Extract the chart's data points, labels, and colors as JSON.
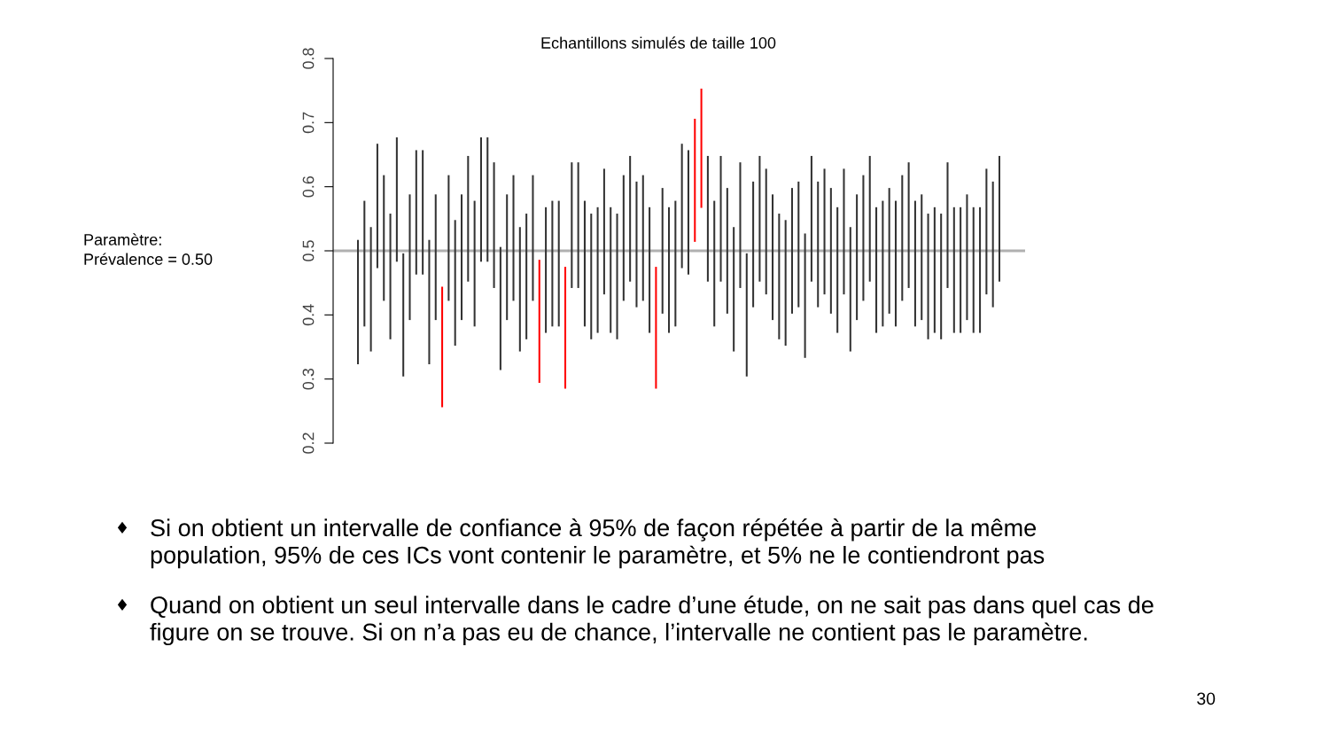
{
  "chart_data": {
    "type": "bar",
    "title": "Echantillons simulés de taille 100",
    "categories": [
      null,
      null,
      null,
      null,
      null,
      null,
      null,
      null,
      null,
      null,
      null,
      null,
      null,
      null,
      null,
      null,
      null,
      null,
      null,
      null,
      null,
      null,
      null,
      null,
      null,
      null,
      null,
      null,
      null,
      null,
      null,
      null,
      null,
      null,
      null,
      null,
      null,
      null,
      null,
      null,
      null,
      null,
      null,
      null,
      null,
      null,
      null,
      null,
      null,
      null,
      null,
      null,
      null,
      null,
      null,
      null,
      null,
      null,
      null,
      null,
      null,
      null,
      null,
      null,
      null,
      null,
      null,
      null,
      null,
      null,
      null,
      null,
      null,
      null,
      null,
      null,
      null,
      null,
      null,
      null,
      null,
      null,
      null,
      null,
      null,
      null,
      null,
      null,
      null,
      null,
      null,
      null,
      null,
      null,
      null,
      null,
      null,
      null,
      null,
      null
    ],
    "base": [
      0.323,
      0.382,
      0.343,
      0.473,
      0.422,
      0.362,
      0.483,
      0.304,
      0.392,
      0.463,
      0.463,
      0.323,
      0.392,
      0.256,
      0.422,
      0.352,
      0.392,
      0.452,
      0.382,
      0.483,
      0.483,
      0.442,
      0.314,
      0.392,
      0.422,
      0.343,
      0.362,
      0.422,
      0.294,
      0.372,
      0.382,
      0.382,
      0.285,
      0.442,
      0.442,
      0.382,
      0.362,
      0.372,
      0.432,
      0.372,
      0.362,
      0.422,
      0.452,
      0.412,
      0.422,
      0.372,
      0.285,
      0.402,
      0.372,
      0.382,
      0.473,
      0.463,
      0.514,
      0.567,
      0.452,
      0.382,
      0.452,
      0.402,
      0.343,
      0.442,
      0.304,
      0.412,
      0.452,
      0.432,
      0.392,
      0.362,
      0.352,
      0.402,
      0.412,
      0.333,
      0.452,
      0.412,
      0.432,
      0.402,
      0.372,
      0.432,
      0.343,
      0.392,
      0.422,
      0.452,
      0.372,
      0.382,
      0.402,
      0.382,
      0.422,
      0.442,
      0.382,
      0.392,
      0.362,
      0.372,
      0.362,
      0.442,
      0.372,
      0.372,
      0.392,
      0.372,
      0.372,
      0.432,
      0.412,
      0.452
    ],
    "values": [
      0.194,
      0.196,
      0.194,
      0.194,
      0.196,
      0.196,
      0.194,
      0.192,
      0.196,
      0.194,
      0.194,
      0.194,
      0.196,
      0.188,
      0.196,
      0.196,
      0.196,
      0.196,
      0.196,
      0.194,
      0.194,
      0.196,
      0.192,
      0.196,
      0.196,
      0.194,
      0.196,
      0.196,
      0.192,
      0.196,
      0.196,
      0.196,
      0.19,
      0.196,
      0.196,
      0.196,
      0.196,
      0.196,
      0.196,
      0.196,
      0.196,
      0.196,
      0.196,
      0.196,
      0.196,
      0.196,
      0.19,
      0.196,
      0.196,
      0.196,
      0.194,
      0.194,
      0.192,
      0.186,
      0.196,
      0.196,
      0.196,
      0.196,
      0.194,
      0.196,
      0.192,
      0.196,
      0.196,
      0.196,
      0.196,
      0.196,
      0.196,
      0.196,
      0.196,
      0.194,
      0.196,
      0.196,
      0.196,
      0.196,
      0.196,
      0.196,
      0.194,
      0.196,
      0.196,
      0.196,
      0.196,
      0.196,
      0.196,
      0.196,
      0.196,
      0.196,
      0.196,
      0.196,
      0.196,
      0.196,
      0.196,
      0.196,
      0.196,
      0.196,
      0.196,
      0.196,
      0.196,
      0.196,
      0.196,
      0.196
    ],
    "colors": [
      "#333333",
      "#333333",
      "#333333",
      "#333333",
      "#333333",
      "#333333",
      "#333333",
      "#333333",
      "#333333",
      "#333333",
      "#333333",
      "#333333",
      "#333333",
      "#ff0000",
      "#333333",
      "#333333",
      "#333333",
      "#333333",
      "#333333",
      "#333333",
      "#333333",
      "#333333",
      "#333333",
      "#333333",
      "#333333",
      "#333333",
      "#333333",
      "#333333",
      "#ff0000",
      "#333333",
      "#333333",
      "#333333",
      "#ff0000",
      "#333333",
      "#333333",
      "#333333",
      "#333333",
      "#333333",
      "#333333",
      "#333333",
      "#333333",
      "#333333",
      "#333333",
      "#333333",
      "#333333",
      "#333333",
      "#ff0000",
      "#333333",
      "#333333",
      "#333333",
      "#333333",
      "#333333",
      "#ff0000",
      "#ff0000",
      "#333333",
      "#333333",
      "#333333",
      "#333333",
      "#333333",
      "#333333",
      "#333333",
      "#333333",
      "#333333",
      "#333333",
      "#333333",
      "#333333",
      "#333333",
      "#333333",
      "#333333",
      "#333333",
      "#333333",
      "#333333",
      "#333333",
      "#333333",
      "#333333",
      "#333333",
      "#333333",
      "#333333",
      "#333333",
      "#333333",
      "#333333",
      "#333333",
      "#333333",
      "#333333",
      "#333333",
      "#333333",
      "#333333",
      "#333333",
      "#333333",
      "#333333",
      "#333333",
      "#333333",
      "#333333",
      "#333333",
      "#333333",
      "#333333",
      "#333333",
      "#333333",
      "#333333",
      "#333333"
    ],
    "ylim": [
      0.2,
      0.8
    ],
    "yticks": [
      0.2,
      0.3,
      0.4,
      0.5,
      0.6,
      0.7,
      0.8
    ],
    "ref_lines": [
      {
        "axis": "y",
        "value": 0.5,
        "color": "#b0b0b0"
      }
    ],
    "grid": false,
    "legend": false,
    "annotations": [
      "Paramètre:\nPrévalence = 0.50",
      "♦ Si on obtient un intervalle de confiance à 95% de façon répétée à partir de la même\npopulation, 95% de ces ICs vont contenir le paramètre, et 5% ne le contiendront pas",
      "♦ Quand on obtient un seul intervalle dans le cadre d’une étude, on ne sait pas dans quel cas de\nfigure on se trouve. Si on n’a pas eu de chance, l’intervalle ne contient pas le paramètre.",
      "30"
    ]
  }
}
